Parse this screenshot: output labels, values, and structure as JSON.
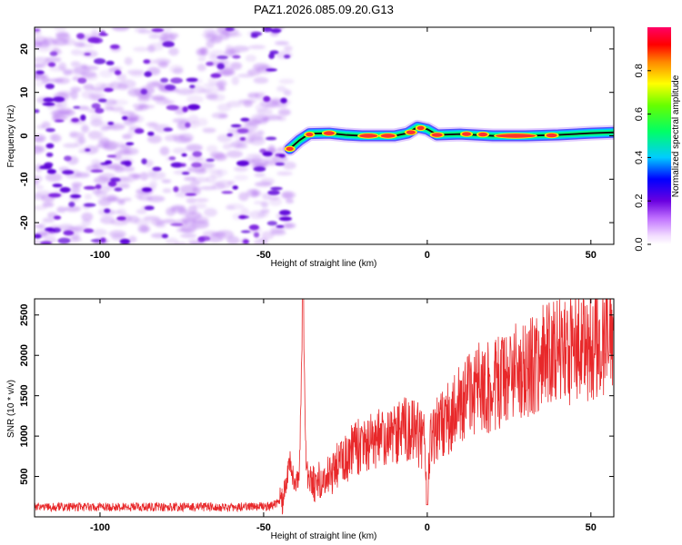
{
  "figure_title": "PAZ1.2026.085.09.20.G13",
  "chart_data": [
    {
      "type": "heatmap",
      "title": "PAZ1.2026.085.09.20.G13",
      "xlabel": "Height of straight line (km)",
      "ylabel": "Frequency (Hz)",
      "xlim": [
        -120,
        57
      ],
      "ylim": [
        -25,
        25
      ],
      "x_ticks": [
        -100,
        -50,
        0,
        50
      ],
      "y_ticks": [
        20,
        10,
        0,
        -10,
        -20
      ],
      "x_tick_labels": [
        "-100",
        "-50",
        "0",
        "50"
      ],
      "y_tick_labels": [
        "20",
        "10",
        "0",
        "-10",
        "-20"
      ],
      "noise_region_x": [
        -120,
        -42
      ],
      "signal_ridge": [
        {
          "x": -42,
          "f": -3.0
        },
        {
          "x": -39,
          "f": -1.0
        },
        {
          "x": -36,
          "f": 0.5
        },
        {
          "x": -30,
          "f": 0.6
        },
        {
          "x": -25,
          "f": 0.2
        },
        {
          "x": -20,
          "f": 0.0
        },
        {
          "x": -15,
          "f": 0.0
        },
        {
          "x": -10,
          "f": 0.0
        },
        {
          "x": -6,
          "f": 0.6
        },
        {
          "x": -3,
          "f": 2.0
        },
        {
          "x": 0,
          "f": 1.5
        },
        {
          "x": 3,
          "f": 0.2
        },
        {
          "x": 10,
          "f": 0.4
        },
        {
          "x": 20,
          "f": 0.0
        },
        {
          "x": 30,
          "f": 0.0
        },
        {
          "x": 40,
          "f": 0.2
        },
        {
          "x": 50,
          "f": 0.6
        },
        {
          "x": 57,
          "f": 0.8
        }
      ],
      "colorbar": {
        "label": "Normalized spectral amplitude",
        "range": [
          0,
          1
        ],
        "ticks": [
          0.0,
          0.2,
          0.4,
          0.6,
          0.8
        ],
        "tick_labels": [
          "0.0",
          "0.2",
          "0.4",
          "0.6",
          "0.8"
        ]
      }
    },
    {
      "type": "line",
      "xlabel": "Height of straight line (km)",
      "ylabel": "SNR (10 * v/v)",
      "xlim": [
        -120,
        57
      ],
      "ylim": [
        0,
        2700
      ],
      "x_ticks": [
        -100,
        -50,
        0,
        50
      ],
      "y_ticks": [
        500,
        1000,
        1500,
        2000,
        2500
      ],
      "x_tick_labels": [
        "-100",
        "-50",
        "0",
        "50"
      ],
      "y_tick_labels": [
        "500",
        "1000",
        "1500",
        "2000",
        "2500"
      ],
      "series": [
        {
          "name": "SNR",
          "color": "#e8282a",
          "x": [
            -120,
            -100,
            -80,
            -60,
            -48,
            -44,
            -42,
            -40,
            -39,
            -38,
            -37,
            -35,
            -30,
            -25,
            -20,
            -15,
            -10,
            -5,
            -1,
            0,
            1,
            5,
            10,
            15,
            20,
            25,
            30,
            35,
            40,
            45,
            50,
            55,
            57
          ],
          "y": [
            120,
            120,
            120,
            120,
            130,
            200,
            650,
            420,
            600,
            2700,
            550,
            400,
            500,
            750,
            900,
            950,
            1000,
            1150,
            900,
            150,
            1000,
            1150,
            1400,
            1600,
            1600,
            1750,
            1850,
            1950,
            2050,
            2100,
            2150,
            2150,
            2100
          ]
        }
      ]
    }
  ],
  "colors": {
    "line": "#e8282a",
    "noise_purple": "#7a2bd8",
    "ridge_dark": "#1a1a1a"
  }
}
